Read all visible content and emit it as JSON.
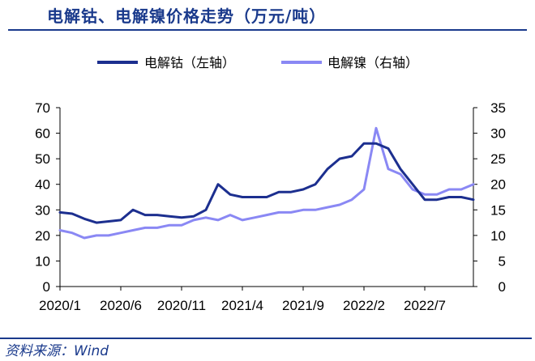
{
  "header": {
    "title": "电解钴、电解镍价格走势（万元/吨）"
  },
  "footer": {
    "source": "资料来源：Wind"
  },
  "colors": {
    "cobalt": "#1c2f8f",
    "nickel": "#8a88f4",
    "title": "#1a3a8c"
  },
  "chart_data": {
    "type": "line",
    "title": "电解钴、电解镍价格走势（万元/吨）",
    "x_tick_labels": [
      "2020/1",
      "2020/6",
      "2020/11",
      "2021/4",
      "2021/9",
      "2022/2",
      "2022/7"
    ],
    "y_left": {
      "min": 0,
      "max": 70,
      "step": 10,
      "ticks": [
        "0",
        "10",
        "20",
        "30",
        "40",
        "50",
        "60",
        "70"
      ]
    },
    "y_right": {
      "min": 0,
      "max": 35,
      "step": 5,
      "ticks": [
        "0",
        "5",
        "10",
        "15",
        "20",
        "25",
        "30",
        "35"
      ]
    },
    "legend": {
      "position": "top"
    },
    "x_range": [
      "2020/1",
      "2022/11"
    ],
    "series": [
      {
        "name": "电解钴（左轴）",
        "axis": "left",
        "x": [
          "2020/1",
          "2020/2",
          "2020/3",
          "2020/4",
          "2020/5",
          "2020/6",
          "2020/7",
          "2020/8",
          "2020/9",
          "2020/10",
          "2020/11",
          "2020/12",
          "2021/1",
          "2021/2",
          "2021/3",
          "2021/4",
          "2021/5",
          "2021/6",
          "2021/7",
          "2021/8",
          "2021/9",
          "2021/10",
          "2021/11",
          "2021/12",
          "2022/1",
          "2022/2",
          "2022/3",
          "2022/4",
          "2022/5",
          "2022/6",
          "2022/7",
          "2022/8",
          "2022/9",
          "2022/10",
          "2022/11"
        ],
        "values": [
          29,
          28.5,
          26.5,
          25,
          25.5,
          26,
          30,
          28,
          28,
          27.5,
          27,
          27.5,
          30,
          40,
          36,
          35,
          35,
          35,
          37,
          37,
          38,
          40,
          46,
          50,
          51,
          56,
          56,
          54,
          46,
          40,
          34,
          34,
          35,
          35,
          34
        ]
      },
      {
        "name": "电解镍（右轴）",
        "axis": "right",
        "x": [
          "2020/1",
          "2020/2",
          "2020/3",
          "2020/4",
          "2020/5",
          "2020/6",
          "2020/7",
          "2020/8",
          "2020/9",
          "2020/10",
          "2020/11",
          "2020/12",
          "2021/1",
          "2021/2",
          "2021/3",
          "2021/4",
          "2021/5",
          "2021/6",
          "2021/7",
          "2021/8",
          "2021/9",
          "2021/10",
          "2021/11",
          "2021/12",
          "2022/1",
          "2022/2",
          "2022/3",
          "2022/4",
          "2022/5",
          "2022/6",
          "2022/7",
          "2022/8",
          "2022/9",
          "2022/10",
          "2022/11"
        ],
        "values": [
          11,
          10.5,
          9.5,
          10,
          10,
          10.5,
          11,
          11.5,
          11.5,
          12,
          12,
          13,
          13.5,
          13,
          14,
          13,
          13.5,
          14,
          14.5,
          14.5,
          15,
          15,
          15.5,
          16,
          17,
          19,
          31,
          23,
          22,
          19,
          18,
          18,
          19,
          19,
          20
        ]
      }
    ]
  }
}
